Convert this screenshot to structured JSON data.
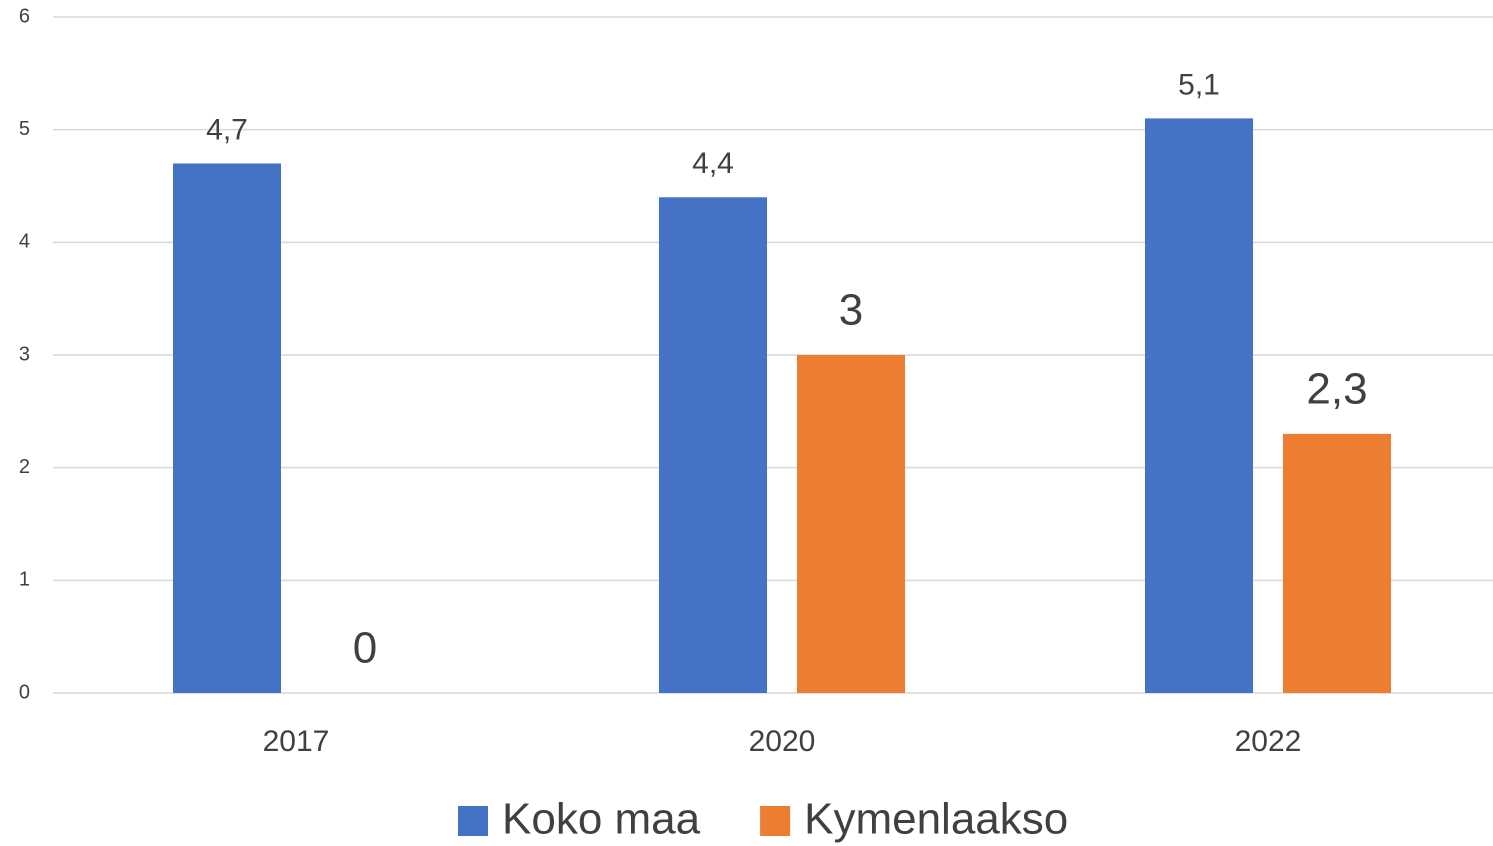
{
  "chart_data": {
    "type": "bar",
    "categories": [
      "2017",
      "2020",
      "2022"
    ],
    "series": [
      {
        "name": "Koko maa",
        "color": "#4472c4",
        "values": [
          4.7,
          4.4,
          5.1
        ],
        "value_labels": [
          "4,7",
          "4,4",
          "5,1"
        ]
      },
      {
        "name": "Kymenlaakso",
        "color": "#ed7d31",
        "values": [
          0,
          3,
          2.3
        ],
        "value_labels": [
          "0",
          "3",
          "2,3"
        ]
      }
    ],
    "ylim": [
      0,
      6
    ],
    "yticks": [
      0,
      1,
      2,
      3,
      4,
      5,
      6
    ],
    "grid": true,
    "legend": "bottom"
  }
}
